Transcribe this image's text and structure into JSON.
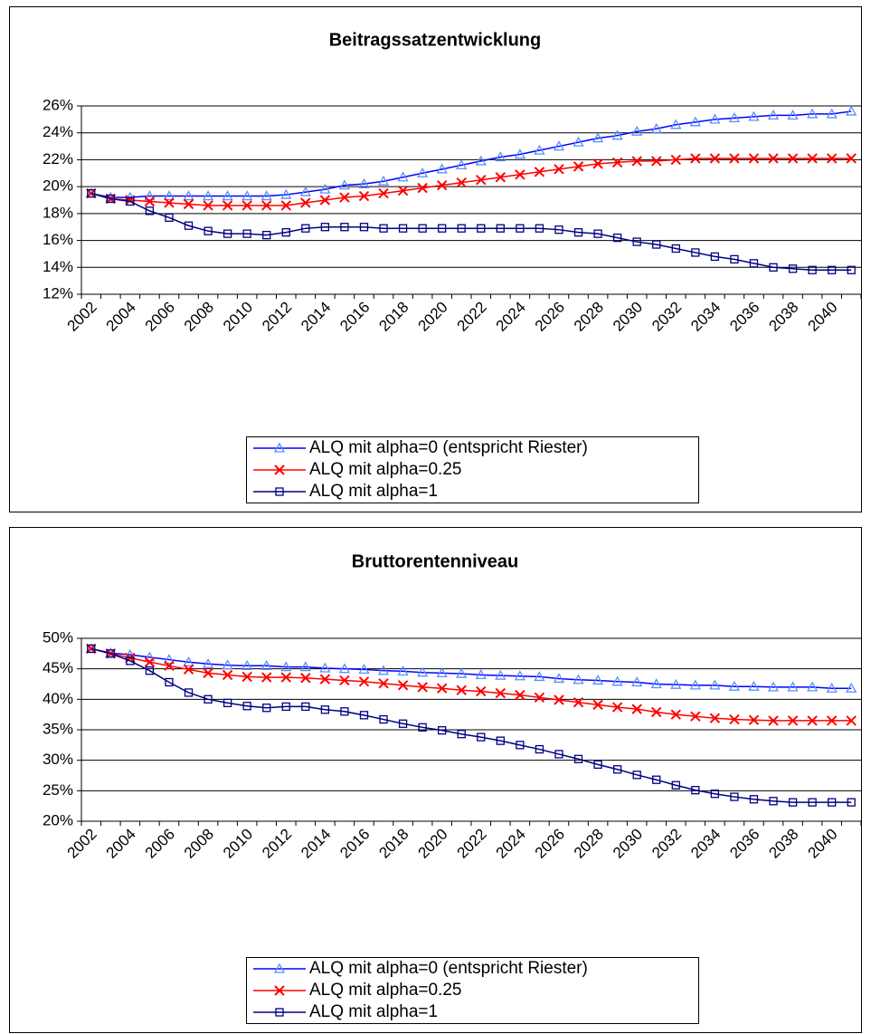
{
  "chart_data": [
    {
      "type": "line",
      "title": "Beitragssatzentwicklung",
      "categories": [
        "2002",
        null,
        "2004",
        null,
        "2006",
        null,
        "2008",
        null,
        "2010",
        null,
        "2012",
        null,
        "2014",
        null,
        "2016",
        null,
        "2018",
        null,
        "2020",
        null,
        "2022",
        null,
        "2024",
        null,
        "2026",
        null,
        "2028",
        null,
        "2030",
        null,
        "2032",
        null,
        "2034",
        null,
        "2036",
        null,
        "2038",
        null,
        "2040",
        null
      ],
      "ylim": [
        12,
        26
      ],
      "yticks": [
        {
          "value": 12,
          "label": "12%"
        },
        {
          "value": 14,
          "label": "14%"
        },
        {
          "value": 16,
          "label": "16%"
        },
        {
          "value": 18,
          "label": "18%"
        },
        {
          "value": 20,
          "label": "20%"
        },
        {
          "value": 22,
          "label": "22%"
        },
        {
          "value": 24,
          "label": "24%"
        },
        {
          "value": 26,
          "label": "26%"
        }
      ],
      "grid": true,
      "legend": "bottom",
      "series": [
        {
          "name": "ALQ mit alpha=0 (entspricht Riester)",
          "color": "#0000ff",
          "marker": "triangle",
          "marker_color": "#5b8cff",
          "values": [
            19.5,
            19.2,
            19.2,
            19.3,
            19.3,
            19.3,
            19.3,
            19.3,
            19.3,
            19.3,
            19.4,
            19.6,
            19.8,
            20.1,
            20.2,
            20.4,
            20.7,
            21.0,
            21.3,
            21.6,
            21.9,
            22.2,
            22.4,
            22.7,
            23.0,
            23.3,
            23.6,
            23.8,
            24.1,
            24.3,
            24.6,
            24.8,
            25.0,
            25.1,
            25.2,
            25.3,
            25.3,
            25.4,
            25.4,
            25.6
          ]
        },
        {
          "name": "ALQ mit alpha=0.25",
          "color": "#ff0000",
          "marker": "cross",
          "marker_color": "#ff0000",
          "values": [
            19.5,
            19.1,
            19.0,
            18.9,
            18.8,
            18.7,
            18.6,
            18.6,
            18.6,
            18.6,
            18.6,
            18.8,
            19.0,
            19.2,
            19.3,
            19.5,
            19.7,
            19.9,
            20.1,
            20.3,
            20.5,
            20.7,
            20.9,
            21.1,
            21.3,
            21.5,
            21.7,
            21.8,
            21.9,
            21.9,
            22.0,
            22.1,
            22.1,
            22.1,
            22.1,
            22.1,
            22.1,
            22.1,
            22.1,
            22.1
          ]
        },
        {
          "name": "ALQ mit alpha=1",
          "color": "#000080",
          "marker": "square",
          "marker_color": "#000080",
          "values": [
            19.5,
            19.1,
            18.9,
            18.2,
            17.7,
            17.1,
            16.7,
            16.5,
            16.5,
            16.4,
            16.6,
            16.9,
            17.0,
            17.0,
            17.0,
            16.9,
            16.9,
            16.9,
            16.9,
            16.9,
            16.9,
            16.9,
            16.9,
            16.9,
            16.8,
            16.6,
            16.5,
            16.2,
            15.9,
            15.7,
            15.4,
            15.1,
            14.8,
            14.6,
            14.3,
            14.0,
            13.9,
            13.8,
            13.8,
            13.8
          ]
        }
      ]
    },
    {
      "type": "line",
      "title": "Bruttorentenniveau",
      "categories": [
        "2002",
        null,
        "2004",
        null,
        "2006",
        null,
        "2008",
        null,
        "2010",
        null,
        "2012",
        null,
        "2014",
        null,
        "2016",
        null,
        "2018",
        null,
        "2020",
        null,
        "2022",
        null,
        "2024",
        null,
        "2026",
        null,
        "2028",
        null,
        "2030",
        null,
        "2032",
        null,
        "2034",
        null,
        "2036",
        null,
        "2038",
        null,
        "2040",
        null
      ],
      "ylim": [
        20,
        50
      ],
      "yticks": [
        {
          "value": 20,
          "label": "20%"
        },
        {
          "value": 25,
          "label": "25%"
        },
        {
          "value": 30,
          "label": "30%"
        },
        {
          "value": 35,
          "label": "35%"
        },
        {
          "value": 40,
          "label": "40%"
        },
        {
          "value": 45,
          "label": "45%"
        },
        {
          "value": 50,
          "label": "50%"
        }
      ],
      "grid": true,
      "legend": "bottom",
      "series": [
        {
          "name": "ALQ mit alpha=0 (entspricht Riester)",
          "color": "#0000ff",
          "marker": "triangle",
          "marker_color": "#5b8cff",
          "values": [
            48.3,
            47.6,
            47.3,
            46.9,
            46.5,
            46.1,
            45.8,
            45.6,
            45.5,
            45.5,
            45.3,
            45.3,
            45.1,
            45.0,
            44.9,
            44.7,
            44.6,
            44.4,
            44.3,
            44.2,
            44.0,
            43.9,
            43.8,
            43.7,
            43.4,
            43.2,
            43.1,
            42.9,
            42.8,
            42.5,
            42.4,
            42.3,
            42.3,
            42.1,
            42.1,
            42.0,
            42.0,
            42.0,
            41.8,
            41.8
          ]
        },
        {
          "name": "ALQ mit alpha=0.25",
          "color": "#ff0000",
          "marker": "cross",
          "marker_color": "#ff0000",
          "values": [
            48.3,
            47.5,
            46.8,
            46.1,
            45.5,
            44.9,
            44.3,
            44.0,
            43.7,
            43.6,
            43.6,
            43.5,
            43.3,
            43.1,
            42.9,
            42.6,
            42.3,
            42.0,
            41.8,
            41.5,
            41.3,
            41.0,
            40.7,
            40.3,
            39.9,
            39.5,
            39.1,
            38.7,
            38.4,
            37.9,
            37.5,
            37.2,
            36.9,
            36.7,
            36.6,
            36.5,
            36.5,
            36.5,
            36.5,
            36.5
          ]
        },
        {
          "name": "ALQ mit alpha=1",
          "color": "#000080",
          "marker": "square",
          "marker_color": "#000080",
          "values": [
            48.3,
            47.5,
            46.3,
            44.7,
            42.8,
            41.1,
            40.0,
            39.4,
            38.9,
            38.6,
            38.8,
            38.8,
            38.3,
            38.0,
            37.4,
            36.7,
            36.0,
            35.4,
            34.9,
            34.3,
            33.8,
            33.2,
            32.5,
            31.8,
            31.0,
            30.2,
            29.3,
            28.5,
            27.6,
            26.8,
            25.9,
            25.1,
            24.5,
            24.0,
            23.6,
            23.3,
            23.1,
            23.1,
            23.1,
            23.1
          ]
        }
      ]
    }
  ]
}
